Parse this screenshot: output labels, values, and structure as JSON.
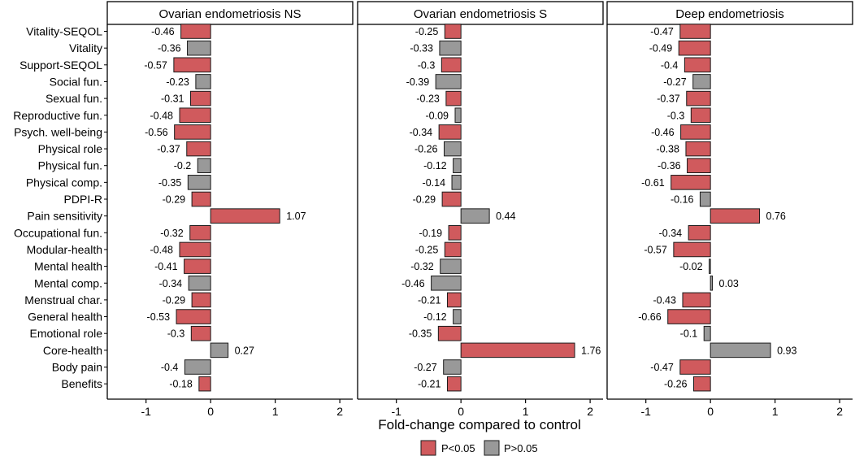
{
  "chart_data": {
    "type": "bar",
    "orientation": "horizontal",
    "xlabel": "Fold-change compared to control",
    "xlim": [
      -1.6,
      2.2
    ],
    "xticks": [
      -1,
      0,
      1,
      2
    ],
    "categories": [
      "Vitality-SEQOL",
      "Vitality",
      "Support-SEQOL",
      "Social fun.",
      "Sexual fun.",
      "Reproductive fun.",
      "Psych. well-being",
      "Physical role",
      "Physical fun.",
      "Physical comp.",
      "PDPI-R",
      "Pain sensitivity",
      "Occupational fun.",
      "Modular-health",
      "Mental health",
      "Mental comp.",
      "Menstrual char.",
      "General health",
      "Emotional role",
      "Core-health",
      "Body pain",
      "Benefits"
    ],
    "panels": [
      {
        "title": "Ovarian endometriosis NS",
        "values": [
          -0.46,
          -0.36,
          -0.57,
          -0.23,
          -0.31,
          -0.48,
          -0.56,
          -0.37,
          -0.2,
          -0.35,
          -0.29,
          1.07,
          -0.32,
          -0.48,
          -0.41,
          -0.34,
          -0.29,
          -0.53,
          -0.3,
          0.27,
          -0.4,
          -0.18
        ],
        "labels": [
          "-0.46",
          "-0.36",
          "-0.57",
          "-0.23",
          "-0.31",
          "-0.48",
          "-0.56",
          "-0.37",
          "-0.2",
          "-0.35",
          "-0.29",
          "1.07",
          "-0.32",
          "-0.48",
          "-0.41",
          "-0.34",
          "-0.29",
          "-0.53",
          "-0.3",
          "0.27",
          "-0.4",
          "-0.18"
        ],
        "significant": [
          true,
          false,
          true,
          false,
          true,
          true,
          true,
          true,
          false,
          false,
          true,
          true,
          true,
          true,
          true,
          false,
          true,
          true,
          true,
          false,
          false,
          true
        ]
      },
      {
        "title": "Ovarian endometriosis S",
        "values": [
          -0.25,
          -0.33,
          -0.3,
          -0.39,
          -0.23,
          -0.09,
          -0.34,
          -0.26,
          -0.12,
          -0.14,
          -0.29,
          0.44,
          -0.19,
          -0.25,
          -0.32,
          -0.46,
          -0.21,
          -0.12,
          -0.35,
          1.76,
          -0.27,
          -0.21
        ],
        "labels": [
          "-0.25",
          "-0.33",
          "-0.3",
          "-0.39",
          "-0.23",
          "-0.09",
          "-0.34",
          "-0.26",
          "-0.12",
          "-0.14",
          "-0.29",
          "0.44",
          "-0.19",
          "-0.25",
          "-0.32",
          "-0.46",
          "-0.21",
          "-0.12",
          "-0.35",
          "1.76",
          "-0.27",
          "-0.21"
        ],
        "significant": [
          true,
          false,
          true,
          false,
          true,
          false,
          true,
          false,
          false,
          false,
          true,
          false,
          true,
          true,
          false,
          false,
          true,
          false,
          true,
          true,
          false,
          true
        ]
      },
      {
        "title": "Deep endometriosis",
        "values": [
          -0.47,
          -0.49,
          -0.4,
          -0.27,
          -0.37,
          -0.3,
          -0.46,
          -0.38,
          -0.36,
          -0.61,
          -0.16,
          0.76,
          -0.34,
          -0.57,
          -0.02,
          0.03,
          -0.43,
          -0.66,
          -0.1,
          0.93,
          -0.47,
          -0.26
        ],
        "labels": [
          "-0.47",
          "-0.49",
          "-0.4",
          "-0.27",
          "-0.37",
          "-0.3",
          "-0.46",
          "-0.38",
          "-0.36",
          "-0.61",
          "-0.16",
          "0.76",
          "-0.34",
          "-0.57",
          "-0.02",
          "0.03",
          "-0.43",
          "-0.66",
          "-0.1",
          "0.93",
          "-0.47",
          "-0.26"
        ],
        "significant": [
          true,
          true,
          true,
          false,
          true,
          true,
          true,
          true,
          true,
          true,
          false,
          true,
          true,
          true,
          false,
          false,
          true,
          true,
          false,
          false,
          true,
          true
        ]
      }
    ],
    "legend": {
      "position": "bottom",
      "items": [
        {
          "label": "P<0.05",
          "color": "#d05a5d"
        },
        {
          "label": "P>0.05",
          "color": "#999999"
        }
      ]
    },
    "colors": {
      "significant": "#d05a5d",
      "nonsignificant": "#999999"
    },
    "grid": false
  }
}
